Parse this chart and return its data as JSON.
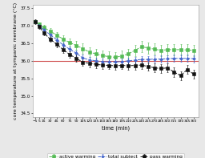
{
  "title": "",
  "xlabel": "time (min)",
  "ylabel": "core temperature at tympanic membrane (°C)",
  "xlim": [
    -10,
    372
  ],
  "ylim": [
    34.4,
    37.6
  ],
  "yticks": [
    34.5,
    35.0,
    35.5,
    36.0,
    36.5,
    37.0,
    37.5
  ],
  "xticks": [
    -5,
    5,
    15,
    30,
    45,
    60,
    75,
    90,
    105,
    120,
    135,
    150,
    165,
    180,
    195,
    210,
    225,
    240,
    255,
    270,
    285,
    300,
    315,
    330,
    345,
    360
  ],
  "hline_y": 36.0,
  "hline_color": "#d05050",
  "series": {
    "total_subject": {
      "label": "total subject",
      "color": "#4466cc",
      "linestyle": "--",
      "marker": "D",
      "markersize": 2.0,
      "linewidth": 0.7,
      "x": [
        -5,
        5,
        15,
        30,
        45,
        60,
        75,
        90,
        105,
        120,
        135,
        150,
        165,
        180,
        195,
        210,
        225,
        240,
        255,
        270,
        285,
        300,
        315,
        330,
        345,
        360
      ],
      "y": [
        37.12,
        37.0,
        36.88,
        36.75,
        36.6,
        36.45,
        36.33,
        36.22,
        36.08,
        36.03,
        36.0,
        35.98,
        35.97,
        35.97,
        35.98,
        36.0,
        36.02,
        36.04,
        36.04,
        36.05,
        36.05,
        36.06,
        36.07,
        36.07,
        36.07,
        36.06
      ],
      "yerr": [
        0.04,
        0.05,
        0.05,
        0.06,
        0.06,
        0.07,
        0.07,
        0.08,
        0.09,
        0.09,
        0.09,
        0.09,
        0.09,
        0.09,
        0.09,
        0.09,
        0.1,
        0.1,
        0.1,
        0.1,
        0.1,
        0.1,
        0.1,
        0.1,
        0.1,
        0.1
      ]
    },
    "pass_warming": {
      "label": "pass warming",
      "color": "#111111",
      "linestyle": "--",
      "marker": "s",
      "markersize": 2.5,
      "linewidth": 0.7,
      "x": [
        -5,
        5,
        15,
        30,
        45,
        60,
        75,
        90,
        105,
        120,
        135,
        150,
        165,
        180,
        195,
        210,
        225,
        240,
        255,
        270,
        285,
        300,
        315,
        330,
        345,
        360
      ],
      "y": [
        37.12,
        36.97,
        36.8,
        36.62,
        36.47,
        36.32,
        36.18,
        36.07,
        35.96,
        35.93,
        35.9,
        35.88,
        35.87,
        35.86,
        35.87,
        35.86,
        35.87,
        35.88,
        35.84,
        35.8,
        35.78,
        35.8,
        35.68,
        35.58,
        35.75,
        35.62
      ],
      "yerr": [
        0.06,
        0.06,
        0.07,
        0.08,
        0.09,
        0.09,
        0.1,
        0.1,
        0.11,
        0.11,
        0.11,
        0.11,
        0.11,
        0.11,
        0.11,
        0.11,
        0.12,
        0.12,
        0.12,
        0.12,
        0.12,
        0.12,
        0.13,
        0.13,
        0.13,
        0.13
      ]
    },
    "active_warming": {
      "label": "active warming",
      "color": "#55bb55",
      "linestyle": "--",
      "marker": "s",
      "markersize": 2.5,
      "linewidth": 0.7,
      "x": [
        -5,
        5,
        15,
        30,
        45,
        60,
        75,
        90,
        105,
        120,
        135,
        150,
        165,
        180,
        195,
        210,
        225,
        240,
        255,
        270,
        285,
        300,
        315,
        330,
        345,
        360
      ],
      "y": [
        37.12,
        37.04,
        36.95,
        36.85,
        36.73,
        36.62,
        36.52,
        36.44,
        36.35,
        36.25,
        36.2,
        36.15,
        36.12,
        36.1,
        36.14,
        36.2,
        36.3,
        36.4,
        36.37,
        36.33,
        36.3,
        36.32,
        36.32,
        36.32,
        36.31,
        36.3
      ],
      "yerr": [
        0.05,
        0.06,
        0.07,
        0.09,
        0.1,
        0.11,
        0.12,
        0.13,
        0.14,
        0.14,
        0.15,
        0.15,
        0.15,
        0.15,
        0.15,
        0.15,
        0.16,
        0.16,
        0.16,
        0.16,
        0.16,
        0.16,
        0.16,
        0.16,
        0.16,
        0.16
      ]
    }
  },
  "bg_color": "#e8e8e8",
  "plot_bg_color": "#ffffff",
  "legend_fontsize": 4.2,
  "axis_fontsize": 4.8,
  "ylabel_fontsize": 4.5,
  "tick_fontsize": 4.0,
  "xtick_fontsize": 3.2
}
